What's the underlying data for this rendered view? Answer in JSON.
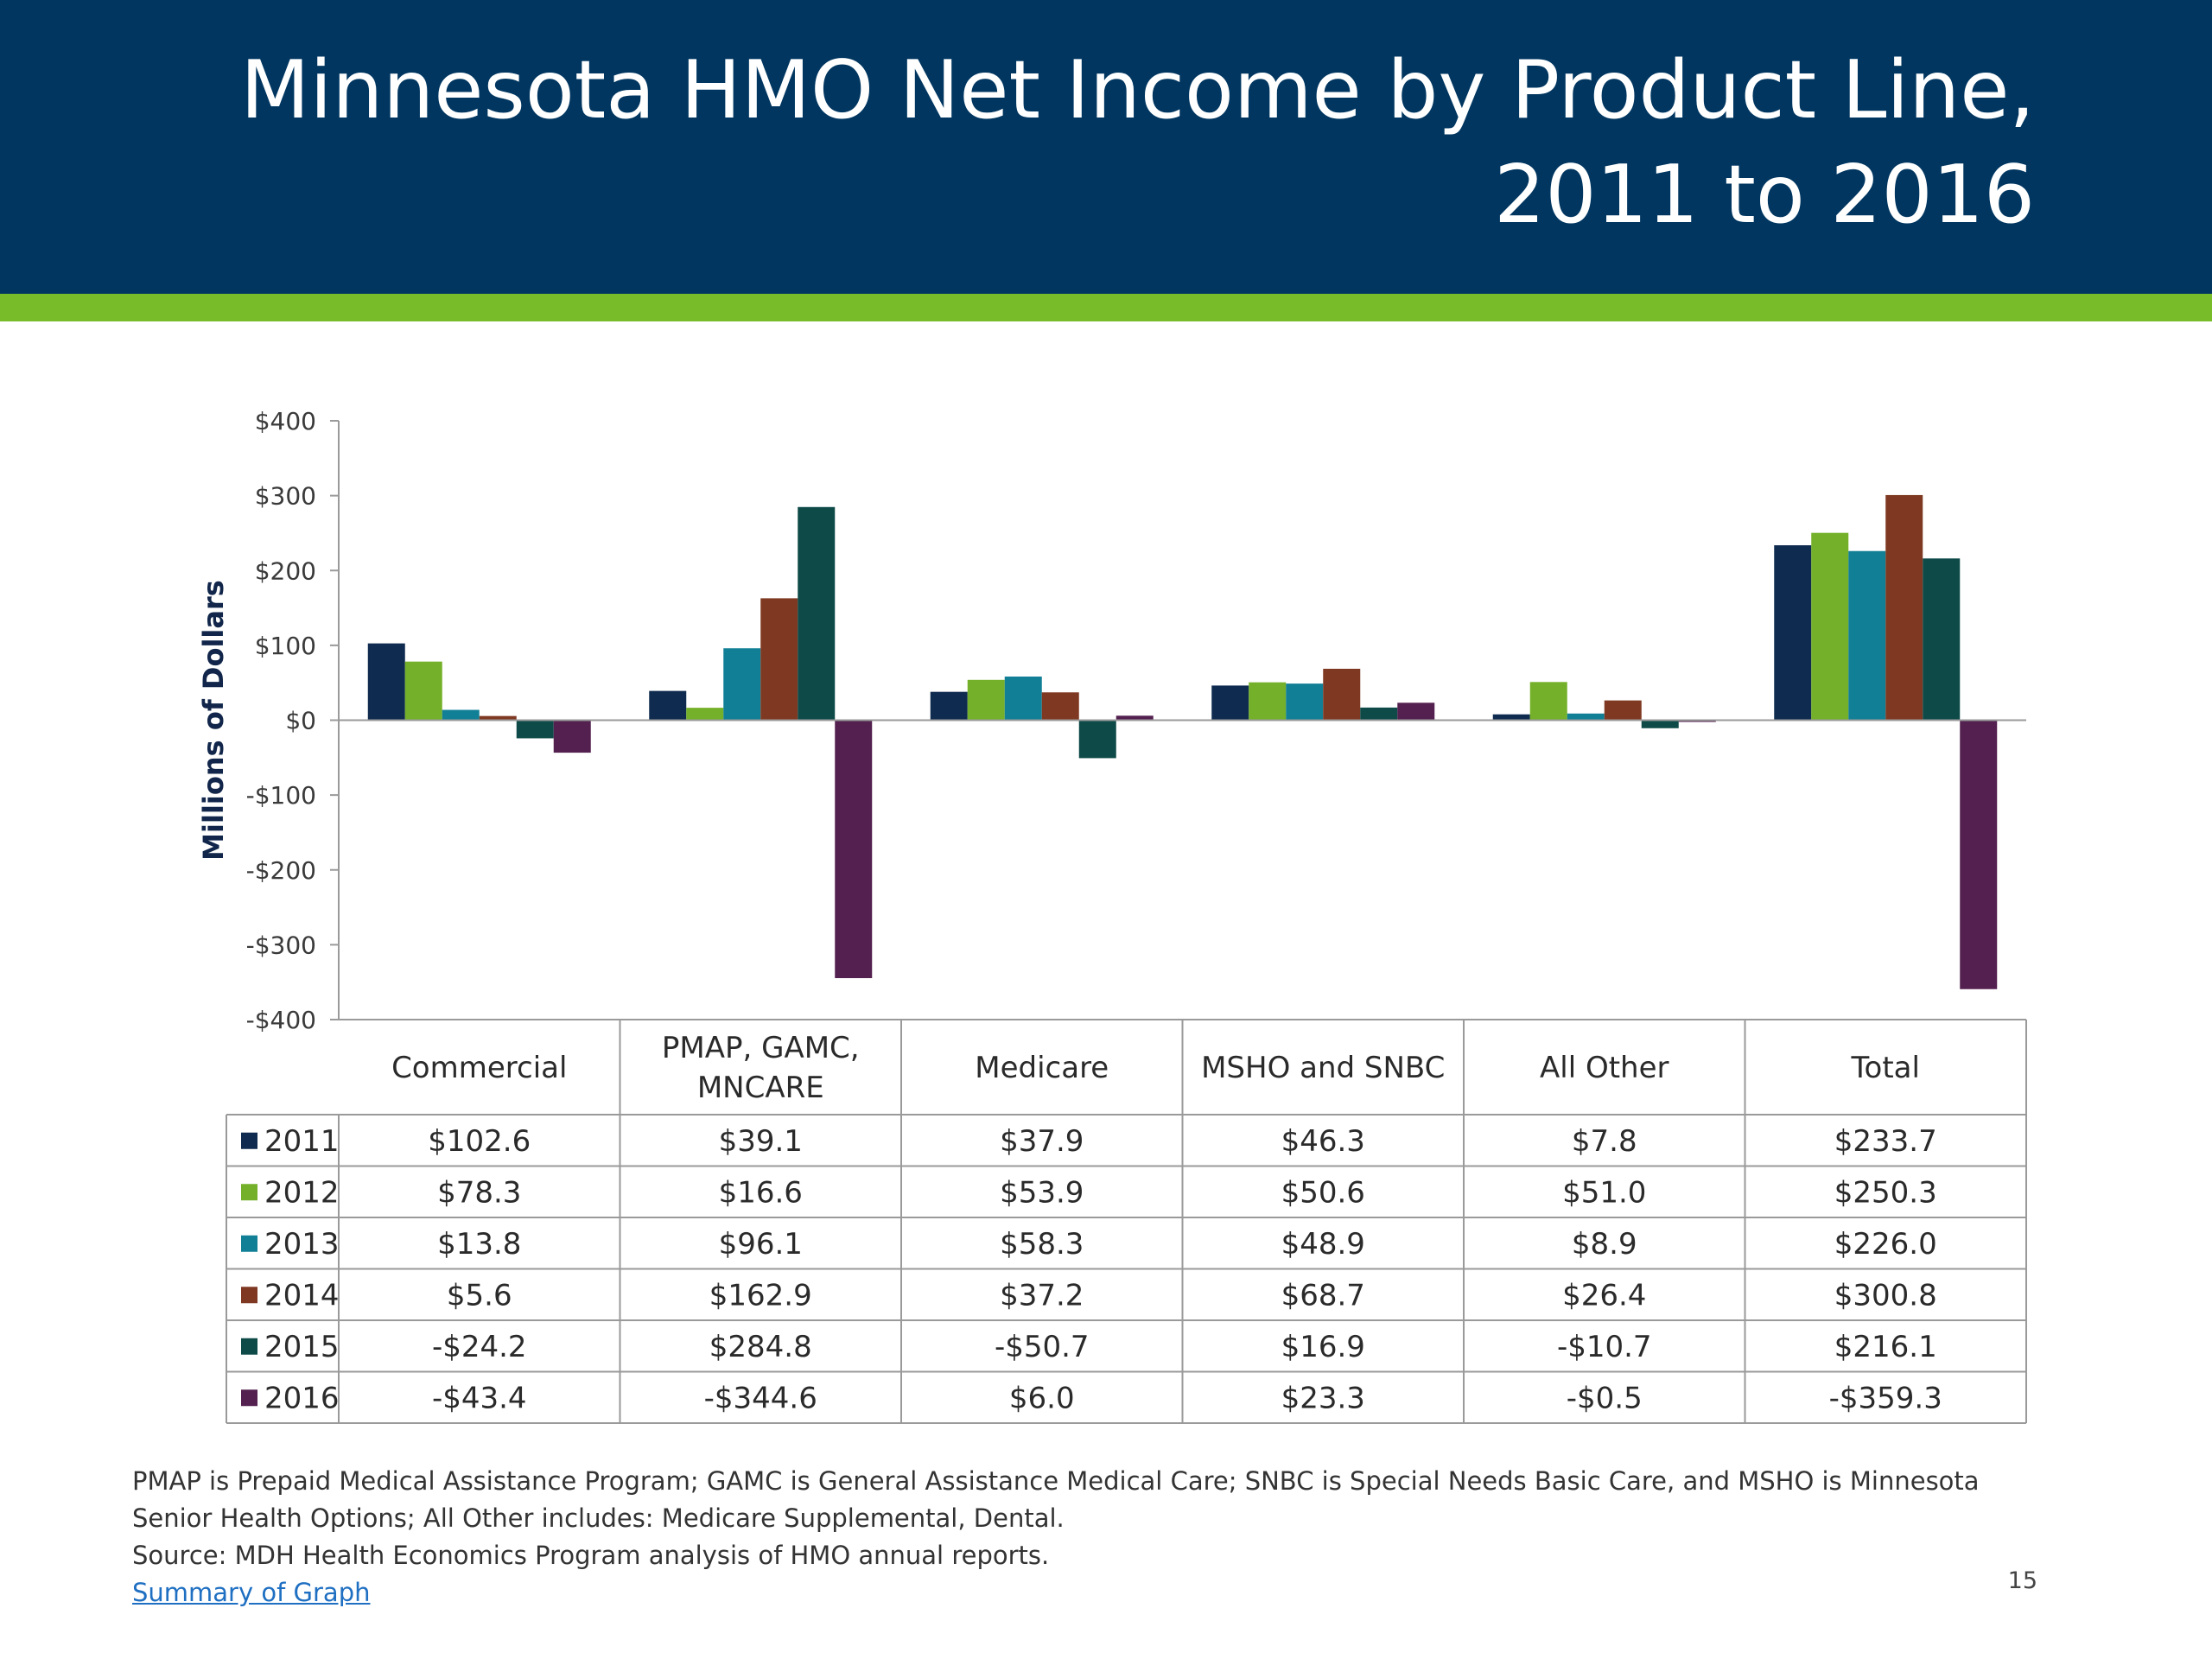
{
  "header": {
    "title_line1": "Minnesota HMO Net Income by Product Line,",
    "title_line2": "2011 to 2016"
  },
  "colors": {
    "header_bg": "#003660",
    "accent_green": "#78bc29"
  },
  "chart_data": {
    "type": "bar",
    "ylabel": "Millions of Dollars",
    "ylim": [
      -400,
      400
    ],
    "ytick_labels": [
      "$400",
      "$300",
      "$200",
      "$100",
      "$0",
      "-$100",
      "-$200",
      "-$300",
      "-$400"
    ],
    "ytick_values": [
      400,
      300,
      200,
      100,
      0,
      -100,
      -200,
      -300,
      -400
    ],
    "grid": false,
    "legend": "data-table",
    "categories": [
      "Commercial",
      "PMAP, GAMC, MNCARE",
      "Medicare",
      "MSHO and SNBC",
      "All Other",
      "Total"
    ],
    "category_lines": [
      [
        "Commercial"
      ],
      [
        "PMAP, GAMC,",
        "MNCARE"
      ],
      [
        "Medicare"
      ],
      [
        "MSHO and SNBC"
      ],
      [
        "All Other"
      ],
      [
        "Total"
      ]
    ],
    "series": [
      {
        "name": "2011",
        "color": "#0f2b4f",
        "values": [
          102.6,
          39.1,
          37.9,
          46.3,
          7.8,
          233.7
        ],
        "labels": [
          "$102.6",
          "$39.1",
          "$37.9",
          "$46.3",
          "$7.8",
          "$233.7"
        ]
      },
      {
        "name": "2012",
        "color": "#74b029",
        "values": [
          78.3,
          16.6,
          53.9,
          50.6,
          51.0,
          250.3
        ],
        "labels": [
          "$78.3",
          "$16.6",
          "$53.9",
          "$50.6",
          "$51.0",
          "$250.3"
        ]
      },
      {
        "name": "2013",
        "color": "#117f95",
        "values": [
          13.8,
          96.1,
          58.3,
          48.9,
          8.9,
          226.0
        ],
        "labels": [
          "$13.8",
          "$96.1",
          "$58.3",
          "$48.9",
          "$8.9",
          "$226.0"
        ]
      },
      {
        "name": "2014",
        "color": "#7f3922",
        "values": [
          5.6,
          162.9,
          37.2,
          68.7,
          26.4,
          300.8
        ],
        "labels": [
          "$5.6",
          "$162.9",
          "$37.2",
          "$68.7",
          "$26.4",
          "$300.8"
        ]
      },
      {
        "name": "2015",
        "color": "#0e4a48",
        "values": [
          -24.2,
          284.8,
          -50.7,
          16.9,
          -10.7,
          216.1
        ],
        "labels": [
          "-$24.2",
          "$284.8",
          "-$50.7",
          "$16.9",
          "-$10.7",
          "$216.1"
        ]
      },
      {
        "name": "2016",
        "color": "#53204f",
        "values": [
          -43.4,
          -344.6,
          6.0,
          23.3,
          -0.5,
          -359.3
        ],
        "labels": [
          "-$43.4",
          "-$344.6",
          "$6.0",
          "$23.3",
          "-$0.5",
          "-$359.3"
        ]
      }
    ]
  },
  "footnote": {
    "line1": "PMAP is Prepaid Medical Assistance Program; GAMC is General Assistance Medical Care; SNBC is Special Needs Basic Care, and MSHO is Minnesota",
    "line2": "Senior Health Options; All Other includes: Medicare Supplemental, Dental.",
    "line3": "Source: MDH Health Economics Program analysis of HMO annual reports.",
    "link": "Summary of Graph"
  },
  "page_number": "15"
}
